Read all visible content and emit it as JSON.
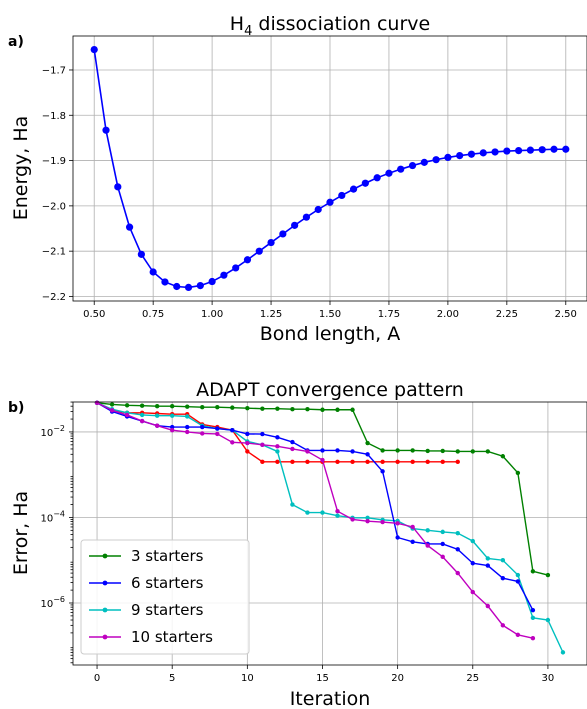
{
  "chart_data": [
    {
      "panel_label": "a)",
      "type": "line",
      "title": "H",
      "title_subscript": "4",
      "title_rest": " dissociation curve",
      "xlabel": "Bond length, A",
      "ylabel": "Energy, Ha",
      "xlim": [
        0.41,
        2.59
      ],
      "ylim": [
        -2.21,
        -1.625
      ],
      "xticks": [
        0.5,
        0.75,
        1.0,
        1.25,
        1.5,
        1.75,
        2.0,
        2.25,
        2.5
      ],
      "xtick_labels": [
        "0.50",
        "0.75",
        "1.00",
        "1.25",
        "1.50",
        "1.75",
        "2.00",
        "2.25",
        "2.50"
      ],
      "yticks": [
        -2.2,
        -2.1,
        -2.0,
        -1.9,
        -1.8,
        -1.7
      ],
      "ytick_labels": [
        "−2.2",
        "−2.1",
        "−2.0",
        "−1.9",
        "−1.8",
        "−1.7"
      ],
      "grid": true,
      "color": "#0000ff",
      "series": [
        {
          "x": [
            0.5,
            0.55,
            0.6,
            0.65,
            0.7,
            0.75,
            0.8,
            0.85,
            0.9,
            0.95,
            1.0,
            1.05,
            1.1,
            1.15,
            1.2,
            1.25,
            1.3,
            1.35,
            1.4,
            1.45,
            1.5,
            1.55,
            1.6,
            1.65,
            1.7,
            1.75,
            1.8,
            1.85,
            1.9,
            1.95,
            2.0,
            2.05,
            2.1,
            2.15,
            2.2,
            2.25,
            2.3,
            2.35,
            2.4,
            2.45,
            2.5
          ],
          "y": [
            -1.655,
            -1.833,
            -1.958,
            -2.047,
            -2.107,
            -2.146,
            -2.168,
            -2.178,
            -2.18,
            -2.176,
            -2.167,
            -2.153,
            -2.137,
            -2.119,
            -2.1,
            -2.081,
            -2.062,
            -2.043,
            -2.025,
            -2.008,
            -1.992,
            -1.977,
            -1.963,
            -1.95,
            -1.938,
            -1.928,
            -1.919,
            -1.911,
            -1.904,
            -1.898,
            -1.893,
            -1.889,
            -1.886,
            -1.883,
            -1.881,
            -1.879,
            -1.878,
            -1.877,
            -1.876,
            -1.875,
            -1.875
          ]
        }
      ]
    },
    {
      "panel_label": "b)",
      "type": "line",
      "title": "ADAPT convergence pattern",
      "xlabel": "Iteration",
      "ylabel": "Error, Ha",
      "yscale": "log",
      "xlim": [
        -1.6,
        32.6
      ],
      "ylim_log10": [
        -7.45,
        -1.3
      ],
      "xticks": [
        0,
        5,
        10,
        15,
        20,
        25,
        30
      ],
      "xtick_labels": [
        "0",
        "5",
        "10",
        "15",
        "20",
        "25",
        "30"
      ],
      "ytick_exponents": [
        -6,
        -4,
        -2
      ],
      "ytick_base": "10",
      "grid": true,
      "legend_position": "lower-left",
      "series": [
        {
          "name": "3 starters",
          "color": "#008000",
          "in_legend": true,
          "x": [
            0,
            1,
            2,
            3,
            4,
            5,
            6,
            7,
            8,
            9,
            10,
            11,
            12,
            13,
            14,
            15,
            16,
            17,
            18,
            19,
            20,
            21,
            22,
            23,
            24,
            25,
            26,
            27,
            28,
            29,
            30
          ],
          "y": [
            0.048,
            0.044,
            0.042,
            0.041,
            0.04,
            0.04,
            0.039,
            0.038,
            0.038,
            0.037,
            0.036,
            0.035,
            0.035,
            0.034,
            0.034,
            0.033,
            0.033,
            0.033,
            0.0055,
            0.0037,
            0.0037,
            0.0037,
            0.0036,
            0.0036,
            0.0035,
            0.0035,
            0.0035,
            0.0027,
            0.0011,
            5.5e-06,
            4.5e-06
          ]
        },
        {
          "name": "6 starters",
          "color": "#0000ff",
          "in_legend": true,
          "x": [
            0,
            1,
            2,
            3,
            4,
            5,
            6,
            7,
            8,
            9,
            10,
            11,
            12,
            13,
            14,
            15,
            16,
            17,
            18,
            19,
            20,
            21,
            22,
            23,
            24,
            25,
            26,
            27,
            28,
            29
          ],
          "y": [
            0.048,
            0.03,
            0.023,
            0.018,
            0.014,
            0.013,
            0.013,
            0.013,
            0.012,
            0.011,
            0.009,
            0.0089,
            0.0075,
            0.0058,
            0.0037,
            0.0037,
            0.0037,
            0.0035,
            0.003,
            0.0012,
            3.4e-05,
            2.7e-05,
            2.4e-05,
            2.4e-05,
            1.8e-05,
            8.5e-06,
            7.5e-06,
            3.8e-06,
            3.2e-06,
            6.8e-07
          ]
        },
        {
          "name": "9 starters",
          "color": "#00bfbf",
          "in_legend": true,
          "x": [
            0,
            1,
            2,
            3,
            4,
            5,
            6,
            7,
            8,
            9,
            10,
            11,
            12,
            13,
            14,
            15,
            16,
            17,
            18,
            19,
            20,
            21,
            22,
            23,
            24,
            25,
            26,
            27,
            28,
            29,
            30,
            31
          ],
          "y": [
            0.048,
            0.034,
            0.028,
            0.025,
            0.024,
            0.024,
            0.023,
            0.014,
            0.012,
            0.011,
            0.006,
            0.005,
            0.0035,
            0.0002,
            0.00013,
            0.00013,
            0.00011,
            9.8e-05,
            9.8e-05,
            8.8e-05,
            8.3e-05,
            5.5e-05,
            5e-05,
            4.6e-05,
            4.3e-05,
            2.8e-05,
            1.1e-05,
            1e-05,
            4.5e-06,
            4.5e-07,
            4e-07,
            7e-08
          ]
        },
        {
          "name": "10 starters",
          "color": "#bf00bf",
          "in_legend": true,
          "x": [
            0,
            1,
            2,
            3,
            4,
            5,
            6,
            7,
            8,
            9,
            10,
            11,
            12,
            13,
            14,
            15,
            16,
            17,
            18,
            19,
            20,
            21,
            22,
            23,
            24,
            25,
            26,
            27,
            28,
            29
          ],
          "y": [
            0.048,
            0.032,
            0.025,
            0.018,
            0.014,
            0.011,
            0.01,
            0.0092,
            0.009,
            0.0057,
            0.0055,
            0.005,
            0.0046,
            0.004,
            0.0035,
            0.0022,
            0.00014,
            9e-05,
            8.2e-05,
            7.8e-05,
            7.3e-05,
            6e-05,
            2.2e-05,
            1.2e-05,
            5e-06,
            1.8e-06,
            8.5e-07,
            3e-07,
            1.8e-07,
            1.5e-07
          ]
        },
        {
          "name": "",
          "color": "#ff0000",
          "in_legend": false,
          "x": [
            0,
            1,
            2,
            3,
            4,
            5,
            6,
            7,
            8,
            9,
            10,
            11,
            12,
            13,
            14,
            15,
            16,
            17,
            18,
            19,
            20,
            21,
            22,
            23,
            24
          ],
          "y": [
            0.048,
            0.032,
            0.028,
            0.028,
            0.027,
            0.026,
            0.026,
            0.015,
            0.013,
            0.011,
            0.0035,
            0.002,
            0.002,
            0.002,
            0.002,
            0.002,
            0.002,
            0.002,
            0.002,
            0.002,
            0.002,
            0.002,
            0.002,
            0.002,
            0.002
          ]
        }
      ]
    }
  ]
}
